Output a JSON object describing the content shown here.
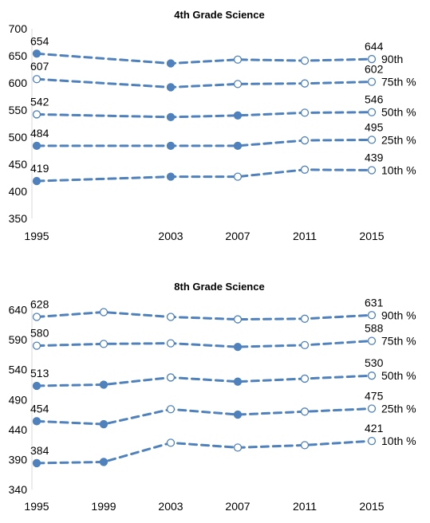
{
  "chart_data": [
    {
      "type": "line",
      "title": "4th Grade Science",
      "xlabel": "",
      "ylabel": "",
      "x": [
        1995,
        2003,
        2007,
        2011,
        2015
      ],
      "x_tick_labels": [
        "1995",
        "2003",
        "2007",
        "2011",
        "2015"
      ],
      "ylim": [
        350,
        700
      ],
      "yticks": [
        350,
        400,
        450,
        500,
        550,
        600,
        650,
        700
      ],
      "grid": false,
      "color": "#4f81bd",
      "series": [
        {
          "name": "90th",
          "values": [
            654,
            636,
            643,
            641,
            644
          ],
          "filled": [
            true,
            true,
            false,
            false,
            false
          ],
          "data_labels": [
            {
              "index": 0,
              "text": "654"
            },
            {
              "index": 4,
              "text": "644"
            }
          ]
        },
        {
          "name": "75th %",
          "values": [
            607,
            592,
            598,
            599,
            602
          ],
          "filled": [
            false,
            true,
            false,
            false,
            false
          ],
          "data_labels": [
            {
              "index": 0,
              "text": "607"
            },
            {
              "index": 4,
              "text": "602"
            }
          ]
        },
        {
          "name": "50th %",
          "values": [
            542,
            537,
            540,
            545,
            546
          ],
          "filled": [
            false,
            true,
            true,
            false,
            false
          ],
          "data_labels": [
            {
              "index": 0,
              "text": "542"
            },
            {
              "index": 4,
              "text": "546"
            }
          ]
        },
        {
          "name": "25th %",
          "values": [
            484,
            484,
            484,
            494,
            495
          ],
          "filled": [
            true,
            true,
            true,
            false,
            false
          ],
          "data_labels": [
            {
              "index": 0,
              "text": "484"
            },
            {
              "index": 4,
              "text": "495"
            }
          ]
        },
        {
          "name": "10th %",
          "values": [
            419,
            427,
            427,
            440,
            439
          ],
          "filled": [
            true,
            true,
            false,
            false,
            false
          ],
          "data_labels": [
            {
              "index": 0,
              "text": "419"
            },
            {
              "index": 4,
              "text": "439"
            }
          ]
        }
      ]
    },
    {
      "type": "line",
      "title": "8th Grade Science",
      "xlabel": "",
      "ylabel": "",
      "x": [
        1995,
        1999,
        2003,
        2007,
        2011,
        2015
      ],
      "x_tick_labels": [
        "1995",
        "1999",
        "2003",
        "2007",
        "2011",
        "2015"
      ],
      "ylim": [
        340,
        650
      ],
      "yticks": [
        340,
        390,
        440,
        490,
        540,
        590,
        640
      ],
      "grid": false,
      "color": "#4f81bd",
      "series": [
        {
          "name": "90th %",
          "values": [
            628,
            636,
            628,
            624,
            625,
            631
          ],
          "filled": [
            false,
            false,
            false,
            false,
            false,
            false
          ],
          "data_labels": [
            {
              "index": 0,
              "text": "628"
            },
            {
              "index": 5,
              "text": "631"
            }
          ]
        },
        {
          "name": "75th %",
          "values": [
            580,
            583,
            584,
            578,
            581,
            588
          ],
          "filled": [
            false,
            false,
            false,
            true,
            false,
            false
          ],
          "data_labels": [
            {
              "index": 0,
              "text": "580"
            },
            {
              "index": 5,
              "text": "588"
            }
          ]
        },
        {
          "name": "50th %",
          "values": [
            513,
            515,
            527,
            520,
            525,
            530
          ],
          "filled": [
            true,
            true,
            false,
            true,
            false,
            false
          ],
          "data_labels": [
            {
              "index": 0,
              "text": "513"
            },
            {
              "index": 5,
              "text": "530"
            }
          ]
        },
        {
          "name": "25th %",
          "values": [
            454,
            449,
            474,
            465,
            470,
            475
          ],
          "filled": [
            true,
            true,
            false,
            true,
            false,
            false
          ],
          "data_labels": [
            {
              "index": 0,
              "text": "454"
            },
            {
              "index": 5,
              "text": "475"
            }
          ]
        },
        {
          "name": "10th %",
          "values": [
            384,
            386,
            418,
            410,
            414,
            421
          ],
          "filled": [
            true,
            true,
            false,
            false,
            false,
            false
          ],
          "data_labels": [
            {
              "index": 0,
              "text": "384"
            },
            {
              "index": 5,
              "text": "421"
            }
          ]
        }
      ]
    }
  ]
}
